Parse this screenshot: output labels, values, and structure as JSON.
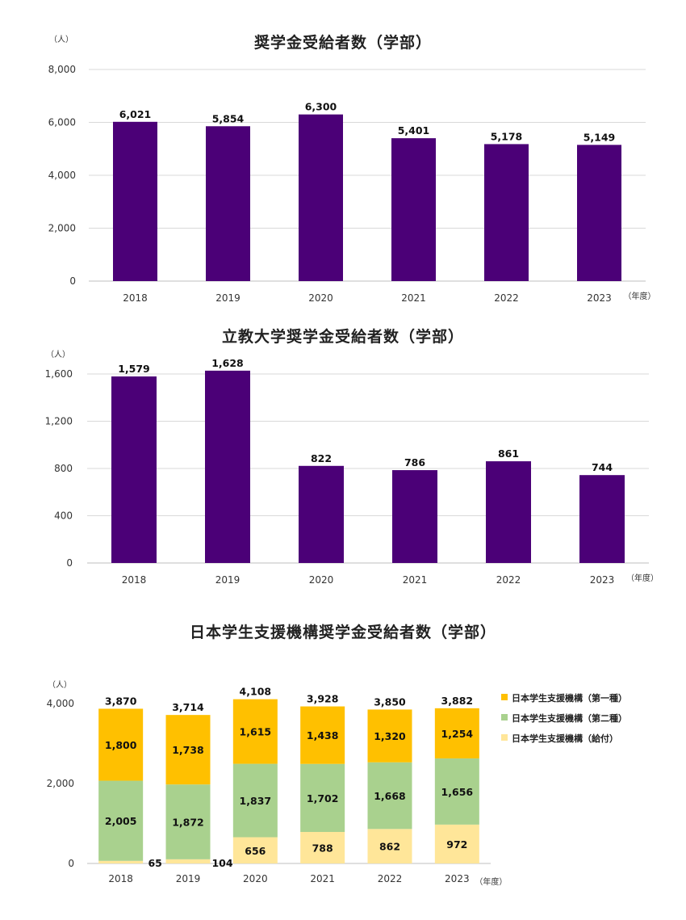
{
  "colors": {
    "bar": "#4b0077",
    "grid": "#d9d9d9",
    "axis": "#bfbfbf",
    "first_type": "#ffc000",
    "second_type": "#a9d18e",
    "grant": "#ffe699"
  },
  "chart_data": [
    {
      "type": "bar",
      "title": "奨学金受給者数（学部）",
      "ylabel_unit": "（人）",
      "xlabel_unit": "（年度）",
      "categories": [
        "2018",
        "2019",
        "2020",
        "2021",
        "2022",
        "2023"
      ],
      "values": [
        6021,
        5854,
        6300,
        5401,
        5178,
        5149
      ],
      "value_labels": [
        "6,021",
        "5,854",
        "6,300",
        "5,401",
        "5,178",
        "5,149"
      ],
      "ylim": [
        0,
        8000
      ],
      "yticks": [
        0,
        2000,
        4000,
        6000,
        8000
      ],
      "ytick_labels": [
        "0",
        "2,000",
        "4,000",
        "6,000",
        "8,000"
      ],
      "grid": true
    },
    {
      "type": "bar",
      "title": "立教大学奨学金受給者数（学部）",
      "ylabel_unit": "（人）",
      "xlabel_unit": "（年度）",
      "categories": [
        "2018",
        "2019",
        "2020",
        "2021",
        "2022",
        "2023"
      ],
      "values": [
        1579,
        1628,
        822,
        786,
        861,
        744
      ],
      "value_labels": [
        "1,579",
        "1,628",
        "822",
        "786",
        "861",
        "744"
      ],
      "ylim": [
        0,
        1600
      ],
      "yticks": [
        0,
        400,
        800,
        1200,
        1600
      ],
      "ytick_labels": [
        "0",
        "400",
        "800",
        "1,200",
        "1,600"
      ],
      "grid": true
    },
    {
      "type": "stacked-bar",
      "title": "日本学生支援機構奨学金受給者数（学部）",
      "ylabel_unit": "（人）",
      "xlabel_unit": "（年度）",
      "categories": [
        "2018",
        "2019",
        "2020",
        "2021",
        "2022",
        "2023"
      ],
      "series": [
        {
          "name": "日本学生支援機構（給付）",
          "values": [
            65,
            104,
            656,
            788,
            862,
            972
          ],
          "value_labels": [
            "65",
            "104",
            "656",
            "788",
            "862",
            "972"
          ]
        },
        {
          "name": "日本学生支援機構（第二種）",
          "values": [
            2005,
            1872,
            1837,
            1702,
            1668,
            1656
          ],
          "value_labels": [
            "2,005",
            "1,872",
            "1,837",
            "1,702",
            "1,668",
            "1,656"
          ]
        },
        {
          "name": "日本学生支援機構（第一種）",
          "values": [
            1800,
            1738,
            1615,
            1438,
            1320,
            1254
          ],
          "value_labels": [
            "1,800",
            "1,738",
            "1,615",
            "1,438",
            "1,320",
            "1,254"
          ]
        }
      ],
      "totals": [
        3870,
        3714,
        4108,
        3928,
        3850,
        3882
      ],
      "total_labels": [
        "3,870",
        "3,714",
        "4,108",
        "3,928",
        "3,850",
        "3,882"
      ],
      "legend_order": [
        "日本学生支援機構（第一種）",
        "日本学生支援機構（第二種）",
        "日本学生支援機構（給付）"
      ],
      "ylim": [
        0,
        4000
      ],
      "yticks": [
        0,
        2000,
        4000
      ],
      "ytick_labels": [
        "0",
        "2,000",
        "4,000"
      ],
      "grid": false,
      "legend_position": "right"
    }
  ]
}
